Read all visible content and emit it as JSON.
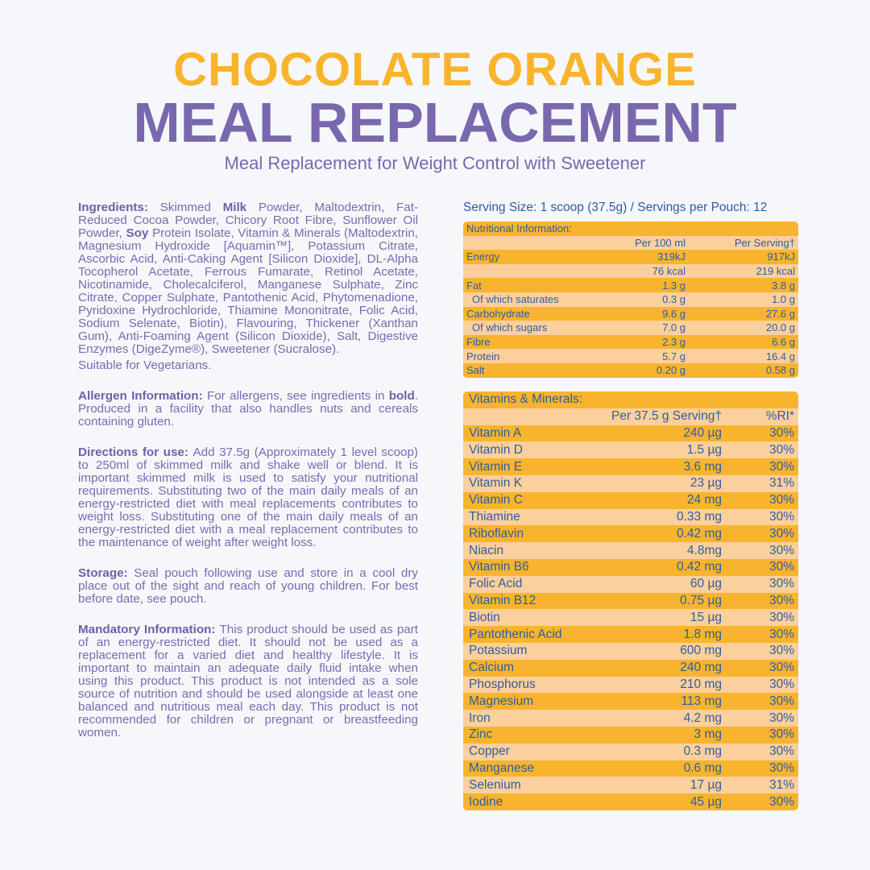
{
  "header": {
    "title_line1": "CHOCOLATE ORANGE",
    "title_line2": "MEAL REPLACEMENT",
    "subtitle": "Meal Replacement for Weight Control with Sweetener"
  },
  "colors": {
    "orange": "#f8b42c",
    "purple": "#7a68ae",
    "blue": "#2f5da0",
    "row_dark": "#f8b42e",
    "row_light": "#fcd09c"
  },
  "left": {
    "ingredients": [
      {
        "text": "Ingredients: ",
        "bold": true
      },
      {
        "text": "Skimmed ",
        "bold": false
      },
      {
        "text": "Milk",
        "bold": true
      },
      {
        "text": " Powder, Maltodextrin, Fat-Reduced Cocoa Powder, Chicory Root Fibre, Sunflower Oil Powder, ",
        "bold": false
      },
      {
        "text": "Soy",
        "bold": true
      },
      {
        "text": " Protein Isolate, Vitamin & Minerals (Maltodextrin, Magnesium Hydroxide [Aquamin™], Potassium Citrate, Ascorbic Acid, Anti-Caking Agent [Silicon Dioxide], DL-Alpha Tocopherol Acetate, Ferrous Fumarate, Retinol Acetate, Nicotinamide, Cholecalciferol, Manganese Sulphate, Zinc Citrate, Copper Sulphate, Pantothenic Acid, Phytomenadione, Pyridoxine Hydrochloride, Thiamine Mononitrate, Folic Acid, Sodium Selenate, Biotin), Flavouring, Thickener (Xanthan Gum), Anti-Foaming Agent (Silicon Dioxide), Salt, Digestive Enzymes (DigeZyme®), Sweetener (Sucralose).",
        "bold": false
      }
    ],
    "vegetarian": "Suitable for Vegetarians.",
    "allergen": [
      {
        "text": "Allergen Information: ",
        "bold": true
      },
      {
        "text": "For allergens, see ingredients in ",
        "bold": false
      },
      {
        "text": "bold",
        "bold": true
      },
      {
        "text": ". Produced in a facility that also handles nuts and cereals containing gluten.",
        "bold": false
      }
    ],
    "directions": [
      {
        "text": "Directions for use: ",
        "bold": true
      },
      {
        "text": "Add 37.5g (Approximately 1 level scoop) to 250ml of skimmed milk and shake well or blend. It is important skimmed milk is used to satisfy your nutritional requirements. Substituting two of the main daily meals of an energy-restricted diet with meal replacements contributes to weight loss. Substituting one of the main daily meals of an energy-restricted diet with a meal replacement contributes to the maintenance of weight after weight loss.",
        "bold": false
      }
    ],
    "storage": [
      {
        "text": "Storage: ",
        "bold": true
      },
      {
        "text": "Seal pouch following use and store in a cool dry place out of the sight and reach of young children. For best before date, see pouch.",
        "bold": false
      }
    ],
    "mandatory": [
      {
        "text": "Mandatory Information: ",
        "bold": true
      },
      {
        "text": "This product should be used as part of an energy-restricted diet. It should not be used as a replacement for a varied diet and healthy lifestyle. It is important to maintain an adequate daily fluid intake when using this product. This product is not intended as a sole source of nutrition and should be used alongside at least one balanced and nutritious meal each day. This product is not recommended for children or pregnant or breastfeeding women.",
        "bold": false
      }
    ]
  },
  "serving": "Serving Size: 1 scoop (37.5g) / Servings per Pouch: 12",
  "nutrition": {
    "title": "Nutritional Information:",
    "headers": [
      "",
      "Per 100 ml",
      "Per Serving†"
    ],
    "rows": [
      [
        "Energy",
        "319kJ",
        "917kJ"
      ],
      [
        "",
        "76 kcal",
        "219 kcal"
      ],
      [
        "Fat",
        "1.3 g",
        "3.8 g"
      ],
      [
        "Of which saturates",
        "0.3 g",
        "1.0 g"
      ],
      [
        "Carbohydrate",
        "9.6 g",
        "27.6 g"
      ],
      [
        "Of which sugars",
        "7.0 g",
        "20.0 g"
      ],
      [
        "Fibre",
        "2.3 g",
        "6.6 g"
      ],
      [
        "Protein",
        "5.7 g",
        "16.4 g"
      ],
      [
        "Salt",
        "0.20 g",
        "0.58 g"
      ]
    ]
  },
  "vitamins": {
    "title": "Vitamins & Minerals:",
    "headers": [
      "",
      "Per 37.5 g Serving†",
      "%RI*"
    ],
    "rows": [
      [
        "Vitamin A",
        "240 µg",
        "30%"
      ],
      [
        "Vitamin D",
        "1.5 µg",
        "30%"
      ],
      [
        "Vitamin E",
        "3.6 mg",
        "30%"
      ],
      [
        "Vitamin K",
        "23 µg",
        "31%"
      ],
      [
        "Vitamin C",
        "24 mg",
        "30%"
      ],
      [
        "Thiamine",
        "0.33 mg",
        "30%"
      ],
      [
        "Riboflavin",
        "0.42 mg",
        "30%"
      ],
      [
        "Niacin",
        "4.8mg",
        "30%"
      ],
      [
        "Vitamin B6",
        "0.42 mg",
        "30%"
      ],
      [
        "Folic Acid",
        "60 µg",
        "30%"
      ],
      [
        "Vitamin B12",
        "0.75 µg",
        "30%"
      ],
      [
        "Biotin",
        "15 µg",
        "30%"
      ],
      [
        "Pantothenic Acid",
        "1.8 mg",
        "30%"
      ],
      [
        "Potassium",
        "600 mg",
        "30%"
      ],
      [
        "Calcium",
        "240 mg",
        "30%"
      ],
      [
        "Phosphorus",
        "210 mg",
        "30%"
      ],
      [
        "Magnesium",
        "113 mg",
        "30%"
      ],
      [
        "Iron",
        "4.2 mg",
        "30%"
      ],
      [
        "Zinc",
        "3 mg",
        "30%"
      ],
      [
        "Copper",
        "0.3 mg",
        "30%"
      ],
      [
        "Manganese",
        "0.6 mg",
        "30%"
      ],
      [
        "Selenium",
        "17 µg",
        "31%"
      ],
      [
        "Iodine",
        "45 µg",
        "30%"
      ]
    ]
  }
}
